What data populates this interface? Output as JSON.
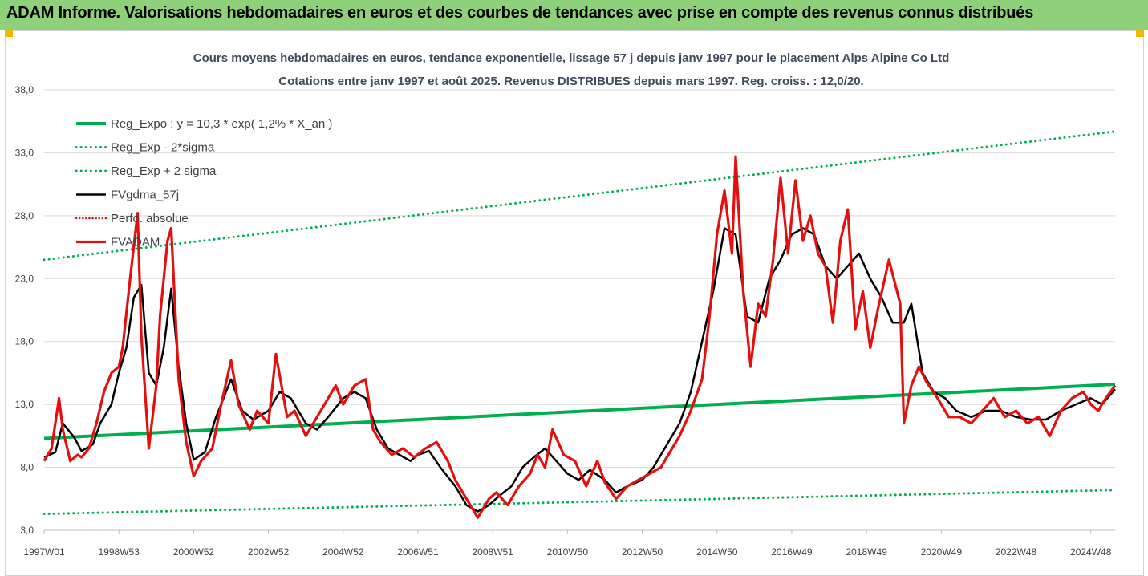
{
  "banner": {
    "title": "ADAM Informe. Valorisations hebdomadaires en euros et des courbes de tendances avec prise en compte des revenus connus distribués"
  },
  "colors": {
    "banner_bg": "#8fd07a",
    "green": "#00b050",
    "black": "#000000",
    "red": "#e31010"
  },
  "chart_data": {
    "type": "line",
    "title": "Cours moyens hebdomadaires en euros, tendance exponentielle, lissage 57 j depuis janv 1997 pour le placement Alps Alpine Co Ltd",
    "subtitle": "Cotations entre janv 1997 et août 2025. Revenus DISTRIBUES depuis mars 1997. Reg. croiss. : 12,0/20.",
    "xlabel": "",
    "ylabel": "",
    "ylim": [
      3,
      38
    ],
    "xlim": [
      1997.0,
      2025.65
    ],
    "y_ticks": [
      "3,0",
      "8,0",
      "13,0",
      "18,0",
      "23,0",
      "28,0",
      "33,0",
      "38,0"
    ],
    "y_tick_values": [
      3,
      8,
      13,
      18,
      23,
      28,
      33,
      38
    ],
    "x_ticks": [
      "1997W01",
      "1998W53",
      "2000W52",
      "2002W52",
      "2004W52",
      "2006W51",
      "2008W51",
      "2010W50",
      "2012W50",
      "2014W50",
      "2016W49",
      "2018W49",
      "2020W49",
      "2022W48",
      "2024W48"
    ],
    "x_tick_values": [
      1997,
      1999,
      2001,
      2003,
      2005,
      2007,
      2009,
      2011,
      2013,
      2015,
      2017,
      2019,
      2021,
      2023,
      2025
    ],
    "grid": "horizontal",
    "legend_position": "top-left",
    "series": [
      {
        "name": "Reg_Expo : y = 10,3 * exp( 1,2% *  X_an )",
        "style": "solid-green-thick",
        "x": [
          1997.0,
          2025.65
        ],
        "values": [
          10.3,
          14.6
        ]
      },
      {
        "name": "Reg_Exp - 2*sigma",
        "style": "dotted-green",
        "x": [
          1997.0,
          2025.65
        ],
        "values": [
          4.3,
          6.2
        ]
      },
      {
        "name": "Reg_Exp + 2 sigma",
        "style": "dotted-green",
        "x": [
          1997.0,
          2025.65
        ],
        "values": [
          24.5,
          34.7
        ]
      },
      {
        "name": "FVgdma_57j",
        "style": "solid-black",
        "x": [
          1997.0,
          1997.3,
          1997.5,
          1997.8,
          1998.0,
          1998.3,
          1998.5,
          1998.8,
          1999.0,
          1999.2,
          1999.4,
          1999.6,
          1999.8,
          2000.0,
          2000.2,
          2000.4,
          2000.6,
          2000.8,
          2001.0,
          2001.3,
          2001.6,
          2002.0,
          2002.3,
          2002.6,
          2003.0,
          2003.3,
          2003.6,
          2004.0,
          2004.3,
          2004.6,
          2005.0,
          2005.3,
          2005.6,
          2005.9,
          2006.2,
          2006.5,
          2006.8,
          2007.0,
          2007.3,
          2007.6,
          2008.0,
          2008.3,
          2008.6,
          2008.9,
          2009.2,
          2009.5,
          2009.8,
          2010.1,
          2010.4,
          2010.7,
          2011.0,
          2011.3,
          2011.6,
          2012.0,
          2012.3,
          2012.6,
          2013.0,
          2013.3,
          2013.6,
          2014.0,
          2014.3,
          2014.6,
          2014.9,
          2015.2,
          2015.5,
          2015.8,
          2016.1,
          2016.4,
          2016.7,
          2017.0,
          2017.3,
          2017.6,
          2017.9,
          2018.2,
          2018.5,
          2018.8,
          2019.1,
          2019.4,
          2019.7,
          2020.0,
          2020.2,
          2020.5,
          2020.8,
          2021.1,
          2021.4,
          2021.8,
          2022.2,
          2022.6,
          2023.0,
          2023.4,
          2023.8,
          2024.2,
          2024.6,
          2025.0,
          2025.3,
          2025.65
        ],
        "values": [
          8.8,
          9.2,
          11.5,
          10.4,
          9.3,
          9.8,
          11.5,
          13.0,
          15.5,
          17.5,
          21.5,
          22.5,
          15.5,
          14.5,
          17.5,
          22.2,
          16.0,
          11.5,
          8.6,
          9.2,
          12.0,
          15.0,
          12.5,
          11.8,
          12.5,
          14.0,
          13.5,
          11.5,
          11.0,
          12.0,
          13.5,
          14.0,
          13.5,
          11.0,
          9.5,
          9.0,
          8.5,
          9.0,
          9.3,
          8.0,
          6.5,
          5.0,
          4.5,
          5.0,
          5.8,
          6.5,
          8.0,
          8.8,
          9.5,
          8.5,
          7.5,
          7.0,
          7.8,
          7.0,
          6.0,
          6.5,
          7.0,
          8.0,
          9.5,
          11.5,
          14.0,
          18.0,
          22.0,
          27.0,
          26.5,
          20.0,
          19.5,
          23.0,
          24.5,
          26.5,
          27.0,
          26.5,
          24.0,
          23.0,
          24.0,
          25.0,
          23.0,
          21.5,
          19.5,
          19.5,
          21.0,
          15.5,
          14.0,
          13.5,
          12.5,
          12.0,
          12.5,
          12.5,
          12.0,
          11.8,
          11.8,
          12.5,
          13.0,
          13.5,
          13.0,
          14.2
        ]
      },
      {
        "name": "Perfo. absolue",
        "style": "dotted-red",
        "x": [],
        "values": []
      },
      {
        "name": "FVADAM",
        "style": "solid-red-thick",
        "x": [
          1997.0,
          1997.2,
          1997.4,
          1997.5,
          1997.7,
          1997.9,
          1998.0,
          1998.2,
          1998.4,
          1998.6,
          1998.8,
          1999.0,
          1999.1,
          1999.3,
          1999.5,
          1999.6,
          1999.8,
          2000.0,
          2000.1,
          2000.3,
          2000.4,
          2000.6,
          2000.8,
          2001.0,
          2001.2,
          2001.5,
          2001.7,
          2002.0,
          2002.2,
          2002.5,
          2002.7,
          2003.0,
          2003.2,
          2003.5,
          2003.7,
          2004.0,
          2004.2,
          2004.5,
          2004.8,
          2005.0,
          2005.3,
          2005.6,
          2005.8,
          2006.0,
          2006.3,
          2006.6,
          2006.9,
          2007.2,
          2007.5,
          2007.8,
          2008.0,
          2008.3,
          2008.6,
          2008.9,
          2009.1,
          2009.4,
          2009.7,
          2010.0,
          2010.2,
          2010.4,
          2010.6,
          2010.9,
          2011.2,
          2011.5,
          2011.8,
          2012.0,
          2012.3,
          2012.6,
          2012.9,
          2013.2,
          2013.5,
          2013.8,
          2014.0,
          2014.3,
          2014.6,
          2014.8,
          2015.0,
          2015.2,
          2015.4,
          2015.5,
          2015.7,
          2015.9,
          2016.1,
          2016.3,
          2016.5,
          2016.7,
          2016.9,
          2017.1,
          2017.3,
          2017.5,
          2017.7,
          2017.9,
          2018.1,
          2018.3,
          2018.5,
          2018.7,
          2018.9,
          2019.1,
          2019.3,
          2019.6,
          2019.9,
          2020.0,
          2020.2,
          2020.4,
          2020.6,
          2020.9,
          2021.2,
          2021.5,
          2021.8,
          2022.1,
          2022.4,
          2022.7,
          2023.0,
          2023.3,
          2023.6,
          2023.9,
          2024.2,
          2024.5,
          2024.8,
          2025.0,
          2025.2,
          2025.4,
          2025.65
        ],
        "values": [
          8.5,
          9.5,
          13.5,
          11.0,
          8.5,
          9.0,
          8.8,
          9.5,
          11.5,
          14.0,
          15.5,
          16.0,
          17.5,
          23.0,
          28.2,
          18.5,
          9.5,
          14.5,
          20.0,
          26.0,
          27.0,
          15.0,
          10.0,
          7.3,
          8.5,
          9.5,
          12.5,
          16.5,
          13.0,
          11.0,
          12.5,
          11.5,
          17.0,
          12.0,
          12.5,
          10.5,
          11.5,
          13.0,
          14.5,
          13.0,
          14.5,
          15.0,
          11.0,
          10.0,
          9.0,
          9.5,
          8.8,
          9.5,
          10.0,
          8.5,
          7.0,
          5.5,
          4.0,
          5.5,
          6.0,
          5.0,
          6.5,
          7.5,
          9.0,
          8.0,
          11.0,
          9.0,
          8.5,
          6.5,
          8.5,
          6.8,
          5.5,
          6.5,
          7.0,
          7.5,
          8.0,
          9.5,
          10.5,
          12.5,
          15.0,
          20.0,
          26.5,
          30.0,
          25.0,
          32.7,
          22.0,
          16.0,
          21.0,
          20.0,
          24.5,
          31.0,
          25.0,
          30.8,
          26.0,
          28.0,
          25.0,
          24.0,
          19.5,
          26.0,
          28.5,
          19.0,
          22.0,
          17.5,
          20.5,
          24.5,
          21.0,
          11.5,
          14.5,
          16.0,
          14.8,
          13.5,
          12.0,
          12.0,
          11.5,
          12.5,
          13.5,
          12.0,
          12.5,
          11.5,
          12.0,
          10.5,
          12.5,
          13.5,
          14.0,
          13.0,
          12.5,
          13.5,
          14.5
        ]
      }
    ]
  }
}
